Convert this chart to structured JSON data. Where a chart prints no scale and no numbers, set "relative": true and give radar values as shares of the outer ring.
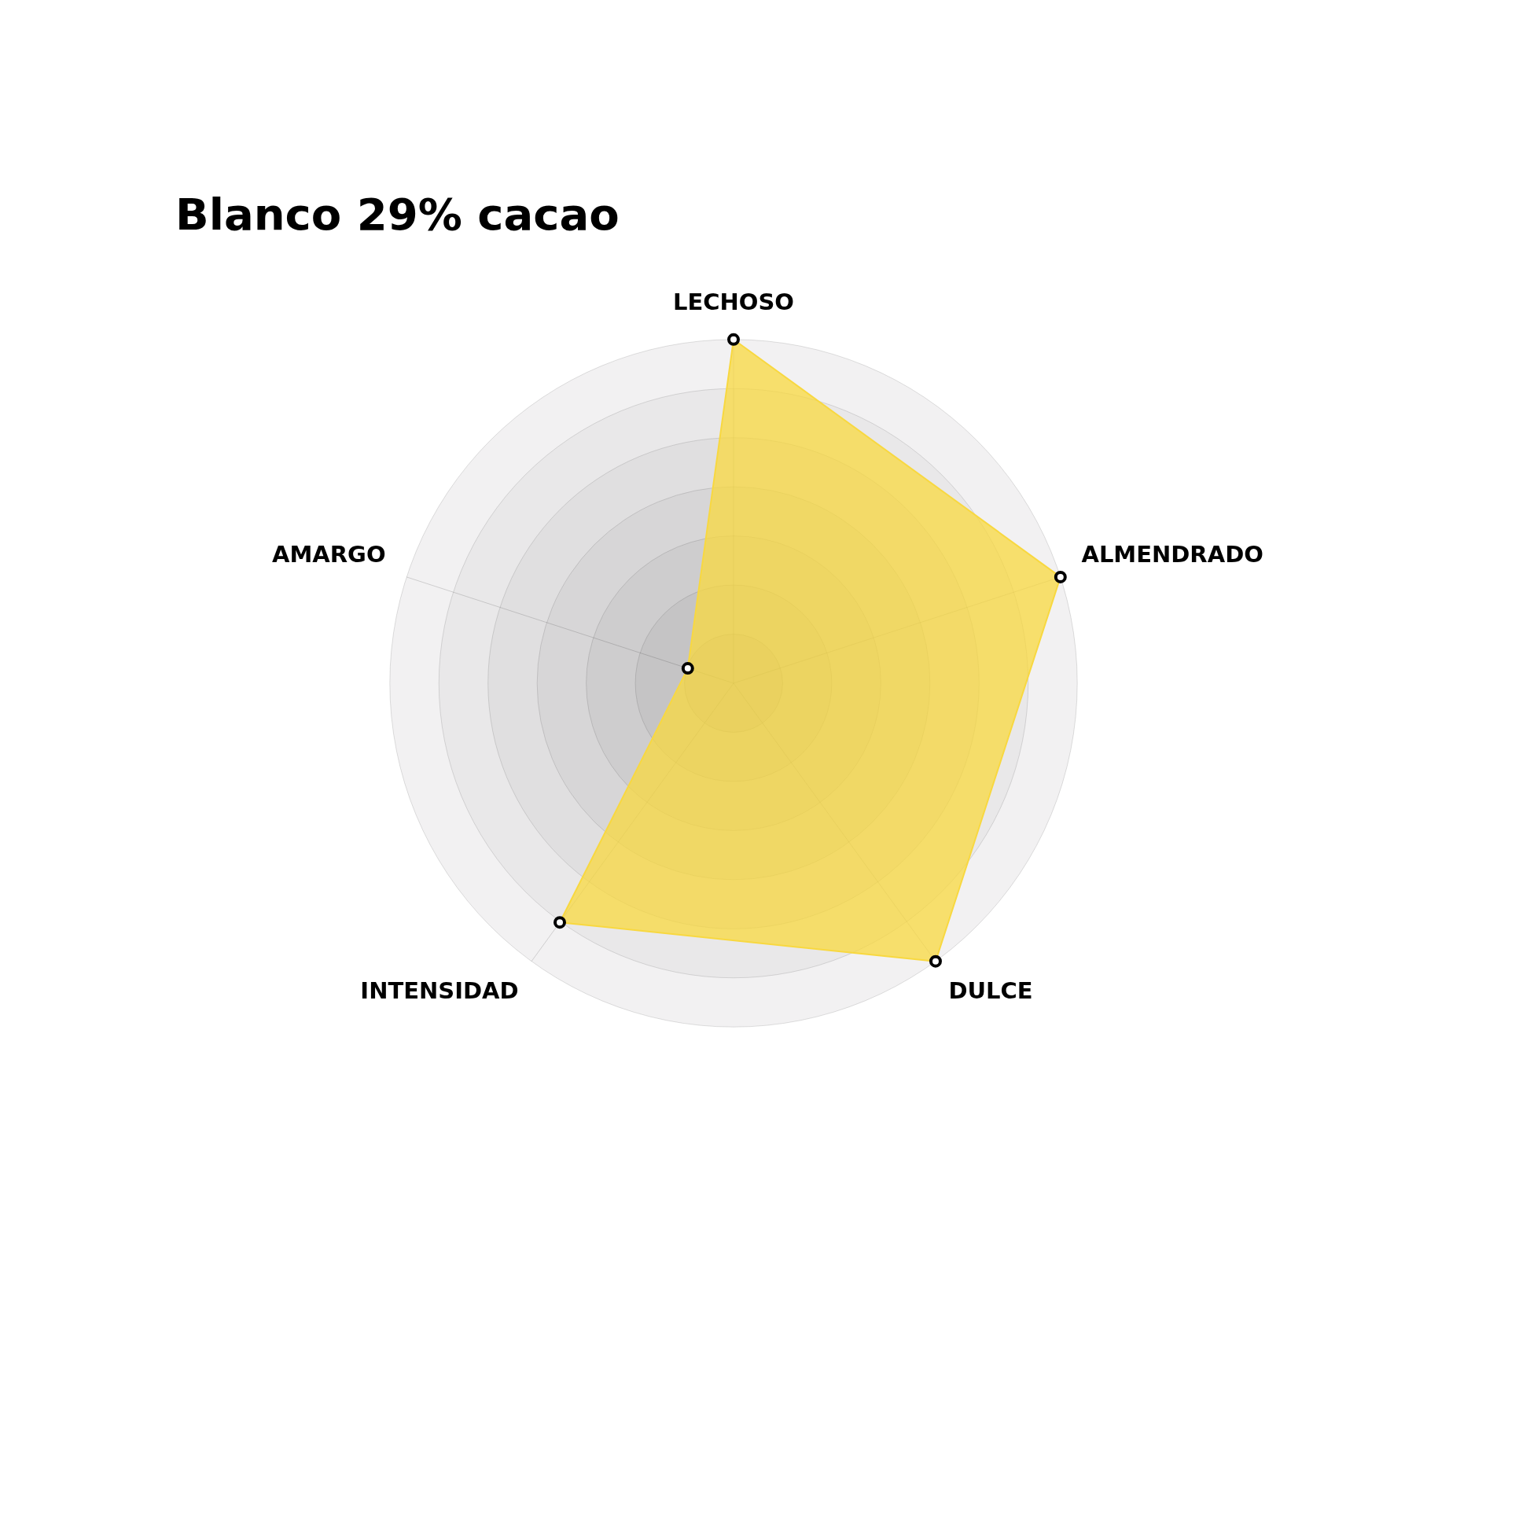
{
  "chart_data": {
    "type": "radar",
    "title": "Blanco 29% cacao",
    "relative": true,
    "categories": [
      "LECHOSO",
      "ALMENDRADO",
      "DULCE",
      "INTENSIDAD",
      "AMARGO"
    ],
    "series": [
      {
        "color": "#f8d840",
        "values": [
          1,
          1,
          1,
          0.86,
          0.14
        ]
      }
    ],
    "marker": "circle",
    "legend": false
  }
}
